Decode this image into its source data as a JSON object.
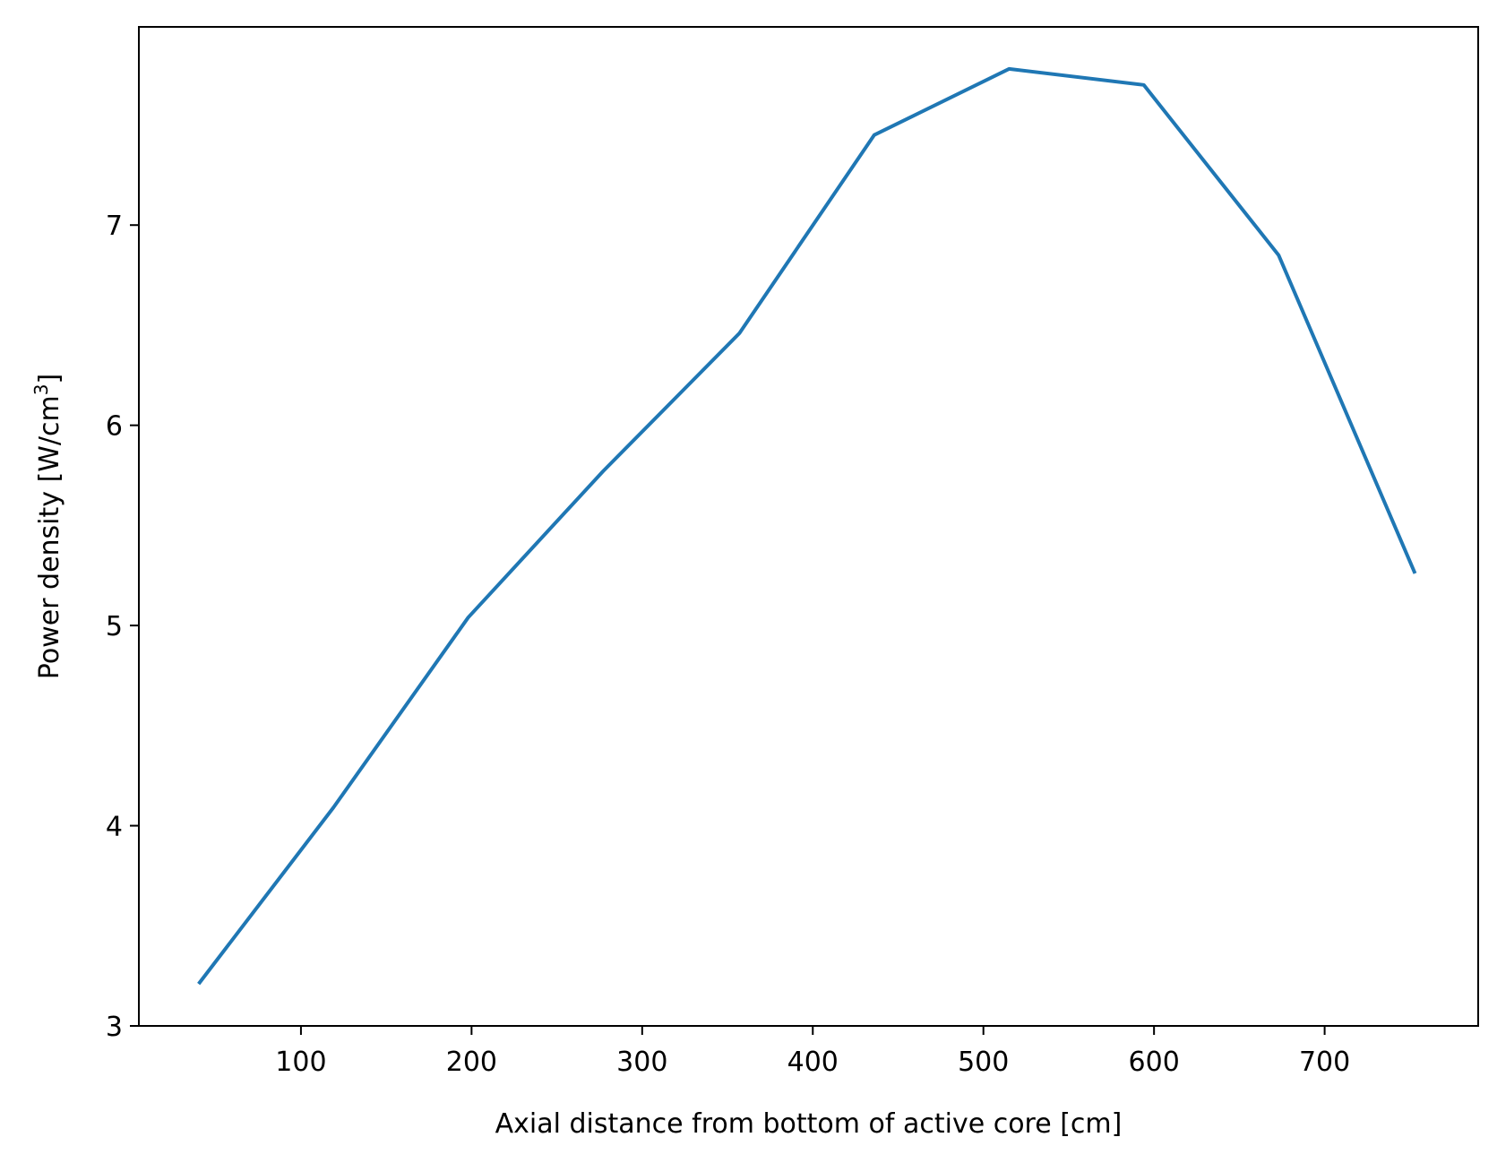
{
  "chart_data": {
    "type": "line",
    "title": "",
    "xlabel": "Axial distance from bottom of active core [cm]",
    "ylabel": {
      "before": "Power density [W/cm",
      "superscript": "3",
      "after": "]"
    },
    "xlim": [
      5,
      790
    ],
    "ylim": [
      3.0,
      7.99
    ],
    "xticks": [
      100,
      200,
      300,
      400,
      500,
      600,
      700
    ],
    "yticks": [
      3,
      4,
      5,
      6,
      7
    ],
    "grid": false,
    "series": [
      {
        "color": "#1f77b4",
        "x": [
          40,
          119,
          198,
          277,
          357,
          436,
          515,
          594,
          673,
          753
        ],
        "y": [
          3.21,
          4.09,
          5.04,
          5.77,
          6.46,
          7.45,
          7.78,
          7.7,
          6.85,
          5.26
        ]
      }
    ]
  }
}
